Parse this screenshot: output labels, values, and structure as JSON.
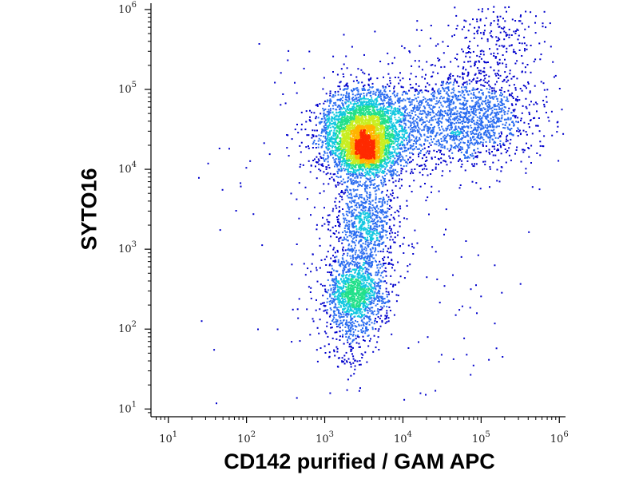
{
  "chart_data": {
    "type": "scatter",
    "title": "",
    "xlabel": "CD142 purified / GAM APC",
    "ylabel": "SYTO16",
    "x_scale": "log",
    "y_scale": "log",
    "xlim": [
      6,
      1200000
    ],
    "ylim": [
      8,
      1200000
    ],
    "x_ticks": [
      {
        "value": 10,
        "base": "10",
        "exp": "1"
      },
      {
        "value": 100,
        "base": "10",
        "exp": "2"
      },
      {
        "value": 1000,
        "base": "10",
        "exp": "3"
      },
      {
        "value": 10000,
        "base": "10",
        "exp": "4"
      },
      {
        "value": 100000,
        "base": "10",
        "exp": "5"
      },
      {
        "value": 1000000,
        "base": "10",
        "exp": "6"
      }
    ],
    "y_ticks": [
      {
        "value": 10,
        "base": "10",
        "exp": "1"
      },
      {
        "value": 100,
        "base": "10",
        "exp": "2"
      },
      {
        "value": 1000,
        "base": "10",
        "exp": "3"
      },
      {
        "value": 10000,
        "base": "10",
        "exp": "4"
      },
      {
        "value": 100000,
        "base": "10",
        "exp": "5"
      },
      {
        "value": 1000000,
        "base": "10",
        "exp": "6"
      }
    ],
    "grid": false,
    "legend": "none",
    "density_colormap": [
      "#0000cc",
      "#2a6cf0",
      "#12c8e0",
      "#22e08a",
      "#c8ee22",
      "#ffb400",
      "#ff2a00"
    ],
    "populations": [
      {
        "center_log10": [
          3.5,
          4.45
        ],
        "spread_log10": [
          0.28,
          0.28
        ],
        "weight": 0.42
      },
      {
        "center_log10": [
          3.5,
          4.25
        ],
        "spread_log10": [
          0.14,
          0.12
        ],
        "weight": 0.08
      },
      {
        "center_log10": [
          4.75,
          4.65
        ],
        "spread_log10": [
          0.45,
          0.3
        ],
        "weight": 0.18
      },
      {
        "center_log10": [
          3.38,
          2.45
        ],
        "spread_log10": [
          0.2,
          0.22
        ],
        "weight": 0.14
      },
      {
        "center_log10": [
          3.5,
          3.3
        ],
        "spread_log10": [
          0.2,
          0.3
        ],
        "weight": 0.1
      },
      {
        "center_log10": [
          5.2,
          5.6
        ],
        "spread_log10": [
          0.35,
          0.3
        ],
        "weight": 0.03
      },
      {
        "center_log10": [
          3.3,
          1.9
        ],
        "spread_log10": [
          0.2,
          0.25
        ],
        "weight": 0.02
      },
      {
        "center_log10": [
          3.6,
          3.5
        ],
        "spread_log10": [
          1.0,
          1.2
        ],
        "weight": 0.03
      }
    ],
    "n_points": 9000
  }
}
